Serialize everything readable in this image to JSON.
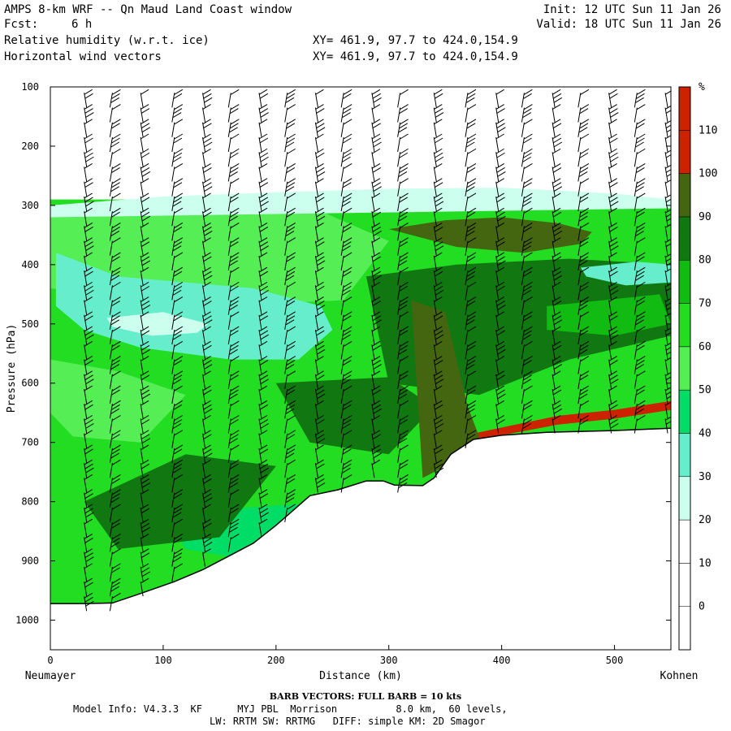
{
  "header": {
    "model_title": "AMPS 8-km WRF -- Qn Maud Land Coast window",
    "fcst_label": "Fcst:",
    "fcst_value": "6 h",
    "init": "Init: 12 UTC Sun 11 Jan 26",
    "valid": "Valid: 18 UTC Sun 11 Jan 26",
    "field1": "Relative humidity (w.r.t. ice)",
    "field2": "Horizontal wind vectors",
    "xy1": "XY= 461.9, 97.7 to 424.0,154.9",
    "xy2": "XY= 461.9, 97.7 to 424.0,154.9"
  },
  "footer": {
    "barb_note": "BARB VECTORS: FULL BARB = 10 kts",
    "line1": "Model Info: V4.3.3  KF      MYJ PBL  Morrison          8.0 km,  60 levels,",
    "line2": "LW: RRTM SW: RRTMG   DIFF: simple KM: 2D Smagor"
  },
  "colors": {
    "band_0_30": "#ffffff",
    "band_30_40": "#ccffee",
    "band_40_50": "#66eecc",
    "band_50_60": "#00dd66",
    "band_60_70": "#55ee55",
    "band_70_80": "#22dd22",
    "band_80_90": "#11bb11",
    "band_90_100": "#117711",
    "band_100_110": "#446611",
    "band_110_plus": "#cc2200",
    "terrain_fill": "#ffffff"
  },
  "chart_data": {
    "type": "heatmap",
    "title": "Relative humidity (w.r.t. ice)",
    "xlabel": "Distance (km)",
    "ylabel": "Pressure (hPa)",
    "x_start_label": "Neumayer",
    "x_end_label": "Kohnen",
    "xlim": [
      0,
      550
    ],
    "ylim": [
      1050,
      100
    ],
    "x_ticks": [
      0,
      100,
      200,
      300,
      400,
      500
    ],
    "y_ticks": [
      100,
      200,
      300,
      400,
      500,
      600,
      700,
      800,
      900,
      1000
    ],
    "colorbar_unit": "%",
    "colorbar_levels": [
      0,
      10,
      20,
      30,
      40,
      50,
      60,
      70,
      80,
      90,
      100,
      110
    ],
    "terrain_surface": {
      "x_km": [
        0,
        30,
        55,
        80,
        110,
        135,
        160,
        180,
        200,
        215,
        230,
        255,
        280,
        295,
        305,
        330,
        340,
        355,
        375,
        400,
        440,
        500,
        550
      ],
      "p_hPa": [
        972,
        972,
        971,
        955,
        935,
        915,
        890,
        870,
        840,
        815,
        790,
        780,
        765,
        765,
        772,
        773,
        760,
        720,
        695,
        688,
        683,
        680,
        676
      ]
    },
    "rh_regions": [
      {
        "label": "110+",
        "x_km": [
          375,
          400,
          450,
          500,
          550,
          550,
          500,
          450,
          400,
          375
        ],
        "p_hPa": [
          695,
          688,
          670,
          660,
          645,
          630,
          645,
          655,
          675,
          685
        ]
      },
      {
        "label": "100-110",
        "x_km": [
          300,
          350,
          400,
          450,
          480,
          470,
          420,
          360
        ],
        "p_hPa": [
          340,
          325,
          320,
          330,
          345,
          365,
          380,
          370
        ]
      },
      {
        "label": "100-110",
        "x_km": [
          320,
          350,
          360,
          370,
          380,
          360,
          330
        ],
        "p_hPa": [
          460,
          480,
          560,
          640,
          690,
          730,
          760
        ]
      },
      {
        "label": "40-50",
        "x_km": [
          5,
          60,
          120,
          180,
          240,
          250,
          220,
          160,
          80,
          30,
          5
        ],
        "p_hPa": [
          380,
          420,
          430,
          440,
          470,
          510,
          560,
          560,
          540,
          510,
          470
        ]
      },
      {
        "label": "30-40",
        "x_km": [
          50,
          100,
          140,
          130,
          90,
          55
        ],
        "p_hPa": [
          490,
          480,
          500,
          515,
          520,
          505
        ]
      },
      {
        "label": "40-50",
        "x_km": [
          470,
          520,
          550,
          550,
          510,
          475
        ],
        "p_hPa": [
          405,
          395,
          400,
          430,
          435,
          420
        ]
      },
      {
        "label": "30-40",
        "x_km": [
          0,
          100,
          200,
          300,
          400,
          500,
          550,
          550,
          0
        ],
        "p_hPa": [
          300,
          285,
          278,
          272,
          270,
          280,
          290,
          305,
          320
        ]
      }
    ],
    "wind_barbs": {
      "columns_km": [
        30,
        55,
        80,
        110,
        135,
        160,
        185,
        210,
        235,
        260,
        285,
        310,
        340,
        370,
        395,
        420,
        445,
        470,
        495,
        520,
        545
      ],
      "full_barb_kts": 10
    }
  }
}
